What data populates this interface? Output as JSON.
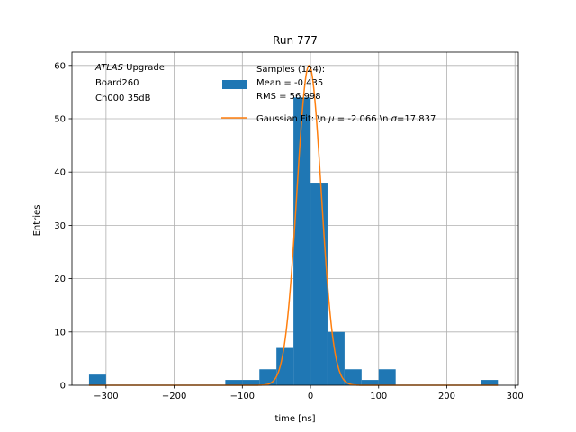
{
  "chart_data": {
    "type": "bar",
    "title": "Run 777",
    "xlabel": "time [ns]",
    "ylabel": "Entries",
    "xlim": [
      -350,
      305
    ],
    "ylim": [
      0,
      62.5
    ],
    "xticks": [
      -300,
      -200,
      -100,
      0,
      100,
      200,
      300
    ],
    "xtick_labels": [
      "−300",
      "−200",
      "−100",
      "0",
      "100",
      "200",
      "300"
    ],
    "yticks": [
      0,
      10,
      20,
      30,
      40,
      50,
      60
    ],
    "ytick_labels": [
      "0",
      "10",
      "20",
      "30",
      "40",
      "50",
      "60"
    ],
    "grid": true,
    "legend_placement": "upper-center",
    "annotation": {
      "lines": [
        {
          "prefix": "",
          "italic": "ATLAS",
          "suffix": " Upgrade"
        },
        {
          "prefix": " Board260",
          "italic": "",
          "suffix": ""
        },
        {
          "prefix": " Ch000 35dB",
          "italic": "",
          "suffix": ""
        }
      ]
    },
    "histogram": {
      "name": "Samples (124):",
      "name_lines": [
        "Samples (124):",
        " Mean = -0.435",
        " RMS = 56.998"
      ],
      "color": "#1f77b4",
      "bins": [
        {
          "x0": -325,
          "x1": -300,
          "value": 2
        },
        {
          "x0": -125,
          "x1": -100,
          "value": 1
        },
        {
          "x0": -100,
          "x1": -75,
          "value": 1
        },
        {
          "x0": -75,
          "x1": -50,
          "value": 3
        },
        {
          "x0": -50,
          "x1": -25,
          "value": 7
        },
        {
          "x0": -25,
          "x1": 0,
          "value": 54
        },
        {
          "x0": 0,
          "x1": 25,
          "value": 38
        },
        {
          "x0": 25,
          "x1": 50,
          "value": 10
        },
        {
          "x0": 50,
          "x1": 75,
          "value": 3
        },
        {
          "x0": 75,
          "x1": 100,
          "value": 1
        },
        {
          "x0": 100,
          "x1": 125,
          "value": 3
        },
        {
          "x0": 250,
          "x1": 275,
          "value": 1
        }
      ]
    },
    "fit": {
      "name": "Gaussian Fit: \\n μ = -2.066 \\n σ=17.837",
      "name_parts": [
        {
          "text": "Gaussian Fit: \\n ",
          "italic": false
        },
        {
          "text": "μ",
          "italic": true
        },
        {
          "text": " = -2.066 \\n ",
          "italic": false
        },
        {
          "text": "σ",
          "italic": true
        },
        {
          "text": "=17.837",
          "italic": false
        }
      ],
      "color": "#ff7f0e",
      "mu": -2.066,
      "sigma": 17.837,
      "amplitude": 60.0,
      "x_range": [
        -325,
        275
      ]
    }
  }
}
